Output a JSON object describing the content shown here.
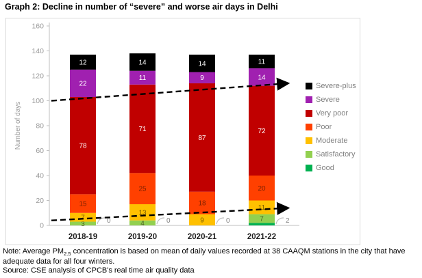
{
  "title": "Graph 2: Decline in number of “severe” and worse air days in Delhi",
  "note": {
    "prefix": "Note: Average PM",
    "subscript": "2.5",
    "rest": " concentration is based on mean of daily values recorded at 38 CAAQM stations in the city that have adequate data for all four winters."
  },
  "source": "Source: CSE analysis of CPCB's real time air quality data",
  "chart_data": {
    "type": "bar",
    "stacked": true,
    "title": "Graph 2: Decline in number of “severe” and worse air days in Delhi",
    "xlabel": "",
    "ylabel": "Number of days",
    "ylim": [
      0,
      160
    ],
    "ytick_step": 20,
    "grid": false,
    "legend_position": "right",
    "categories": [
      "2018-19",
      "2019-20",
      "2020-21",
      "2021-22"
    ],
    "series": [
      {
        "name": "Good",
        "color": "#00B050",
        "label_color": "#808080",
        "values": [
          0,
          0,
          0,
          2
        ],
        "labels_as_callout": true
      },
      {
        "name": "Satisfactory",
        "color": "#92D050",
        "label_color": "#4F6228",
        "values": [
          3,
          4,
          0,
          7
        ]
      },
      {
        "name": "Moderate",
        "color": "#FFC000",
        "label_color": "#7F6000",
        "values": [
          7,
          13,
          9,
          11
        ]
      },
      {
        "name": "Poor",
        "color": "#FF4000",
        "label_color": "#7F2100",
        "values": [
          15,
          25,
          18,
          20
        ]
      },
      {
        "name": "Very poor",
        "color": "#C00000",
        "label_color": "#FFFFFF",
        "values": [
          78,
          71,
          87,
          72
        ]
      },
      {
        "name": "Severe",
        "color": "#A020B0",
        "label_color": "#FFFFFF",
        "values": [
          22,
          11,
          9,
          14
        ]
      },
      {
        "name": "Severe-plus",
        "color": "#000000",
        "label_color": "#FFFFFF",
        "values": [
          12,
          14,
          14,
          11
        ]
      }
    ],
    "legend_order": [
      "Severe-plus",
      "Severe",
      "Very poor",
      "Poor",
      "Moderate",
      "Satisfactory",
      "Good"
    ],
    "trend_arrows": [
      {
        "start_value": 100,
        "end_value": 114
      },
      {
        "start_value": 4,
        "end_value": 14
      }
    ],
    "colors": {
      "axis": "#BFBFBF",
      "tick_label": "#999999",
      "callout_text": "#808080",
      "callout_leader": "#BFBFBF",
      "trend_arrow": "#000000",
      "category_label": "#1f1f1f",
      "frame_border": "#d9d9d9"
    }
  }
}
